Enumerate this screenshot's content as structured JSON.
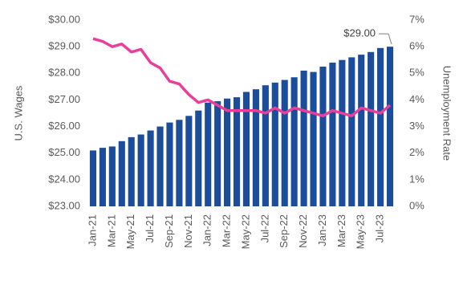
{
  "chart_data": {
    "type": "bar-line",
    "categories": [
      "Jan-21",
      null,
      "Mar-21",
      null,
      "May-21",
      null,
      "Jul-21",
      null,
      "Sep-21",
      null,
      "Nov-21",
      null,
      "Jan-22",
      null,
      "Mar-22",
      null,
      "May-22",
      null,
      "Jul-22",
      null,
      "Sep-22",
      null,
      "Nov-22",
      null,
      "Jan-23",
      null,
      "Mar-23",
      null,
      "May-23",
      null,
      "Jul-23",
      null
    ],
    "y_label": "U.S. Wages",
    "y2_label": "Unemployment Rate",
    "series": [
      {
        "type": "bar",
        "color": "#1b4d9b",
        "values": [
          25.1,
          25.2,
          25.25,
          25.45,
          25.6,
          25.7,
          25.85,
          26.0,
          26.15,
          26.25,
          26.4,
          26.6,
          26.9,
          26.95,
          27.05,
          27.1,
          27.3,
          27.4,
          27.55,
          27.65,
          27.75,
          27.85,
          28.1,
          28.05,
          28.25,
          28.4,
          28.5,
          28.6,
          28.7,
          28.8,
          28.95,
          29.0
        ],
        "value_labels": [
          null,
          null,
          null,
          null,
          null,
          null,
          null,
          null,
          null,
          null,
          null,
          null,
          null,
          null,
          null,
          null,
          null,
          null,
          null,
          null,
          null,
          null,
          null,
          null,
          null,
          null,
          null,
          null,
          null,
          null,
          null,
          "$29.00"
        ]
      },
      {
        "type": "line",
        "axis": "y2",
        "color": "#e8409a",
        "values": [
          6.3,
          6.2,
          6.0,
          6.1,
          5.8,
          5.9,
          5.4,
          5.2,
          4.7,
          4.6,
          4.2,
          3.9,
          4.0,
          3.8,
          3.6,
          3.6,
          3.6,
          3.6,
          3.5,
          3.7,
          3.5,
          3.7,
          3.6,
          3.5,
          3.4,
          3.6,
          3.5,
          3.4,
          3.7,
          3.6,
          3.5,
          3.8
        ]
      }
    ],
    "ylim": [
      23,
      30
    ],
    "yticks": [
      {
        "value": 23,
        "label": "$23.00"
      },
      {
        "value": 24,
        "label": "$24.00"
      },
      {
        "value": 25,
        "label": "$25.00"
      },
      {
        "value": 26,
        "label": "$26.00"
      },
      {
        "value": 27,
        "label": "$27.00"
      },
      {
        "value": 28,
        "label": "$28.00"
      },
      {
        "value": 29,
        "label": "$29.00"
      },
      {
        "value": 30,
        "label": "$30.00"
      }
    ],
    "y2lim": [
      0,
      7
    ],
    "y2ticks": [
      {
        "value": 0,
        "label": "0%"
      },
      {
        "value": 1,
        "label": "1%"
      },
      {
        "value": 2,
        "label": "2%"
      },
      {
        "value": 3,
        "label": "3%"
      },
      {
        "value": 4,
        "label": "4%"
      },
      {
        "value": 5,
        "label": "5%"
      },
      {
        "value": 6,
        "label": "6%"
      },
      {
        "value": 7,
        "label": "7%"
      }
    ],
    "grid": false
  }
}
